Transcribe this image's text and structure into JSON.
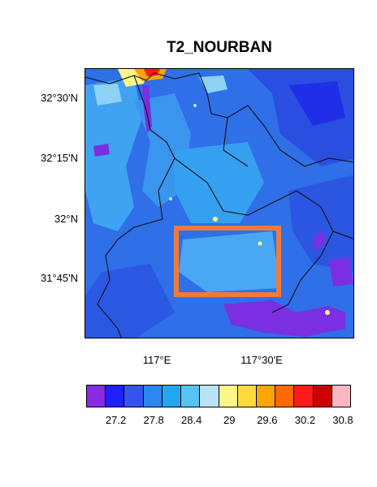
{
  "title": "T2_NOURBAN",
  "map": {
    "lat_labels": [
      "32°30'N",
      "32°15'N",
      "32°N",
      "31°45'N"
    ],
    "lon_labels": [
      "117°E",
      "117°30'E"
    ],
    "highlight_box_color": "#f07a3a",
    "boundary_color": "#111111"
  },
  "colorbar": {
    "colors": [
      "#8a2be2",
      "#1f1fff",
      "#3355ee",
      "#2e86f0",
      "#22a6f0",
      "#55c4f5",
      "#b9e4f5",
      "#fff68a",
      "#ffd93d",
      "#ffa500",
      "#ff6a00",
      "#ff1a1a",
      "#cc0000",
      "#ffb6c1"
    ],
    "labels": [
      "27.2",
      "27.8",
      "28.4",
      "29",
      "29.6",
      "30.2",
      "30.8"
    ]
  }
}
